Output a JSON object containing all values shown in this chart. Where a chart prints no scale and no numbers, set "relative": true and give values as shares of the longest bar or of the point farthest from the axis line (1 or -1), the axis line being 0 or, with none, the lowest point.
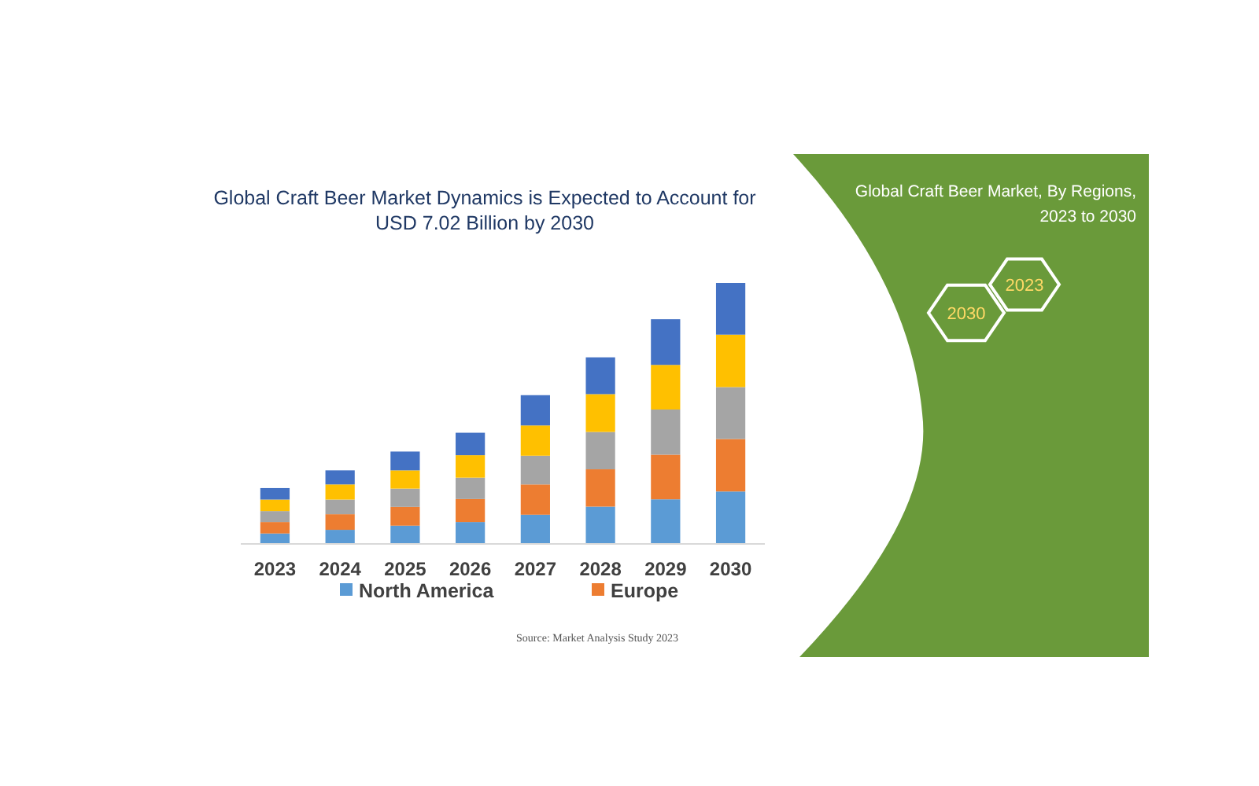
{
  "chart_data": {
    "type": "bar",
    "title": "Global Craft Beer Market Dynamics is Expected to Account for USD 7.02 Billion by 2030",
    "categories": [
      "2023",
      "2024",
      "2025",
      "2026",
      "2027",
      "2028",
      "2029",
      "2030"
    ],
    "stacked": true,
    "relative": true,
    "legend": "bottom",
    "grid": false,
    "series": [
      {
        "name": "North America",
        "color": "#5b9bd5",
        "values": [
          0.04,
          0.054,
          0.07,
          0.084,
          0.112,
          0.143,
          0.171,
          0.201
        ]
      },
      {
        "name": "Europe",
        "color": "#ed7d31",
        "values": [
          0.044,
          0.06,
          0.072,
          0.088,
          0.116,
          0.143,
          0.171,
          0.201
        ]
      },
      {
        "color": "#a5a5a5",
        "values": [
          0.042,
          0.056,
          0.07,
          0.082,
          0.11,
          0.143,
          0.173,
          0.199
        ]
      },
      {
        "color": "#ffc000",
        "values": [
          0.044,
          0.058,
          0.07,
          0.086,
          0.116,
          0.145,
          0.171,
          0.201
        ]
      },
      {
        "color": "#4472c4",
        "values": [
          0.044,
          0.054,
          0.072,
          0.086,
          0.116,
          0.141,
          0.175,
          0.198
        ]
      }
    ],
    "annotations": [
      "Global Craft Beer Market, By Regions, 2023 to 2030",
      "2030",
      "2023",
      "Source: Market Analysis Study 2023"
    ]
  }
}
